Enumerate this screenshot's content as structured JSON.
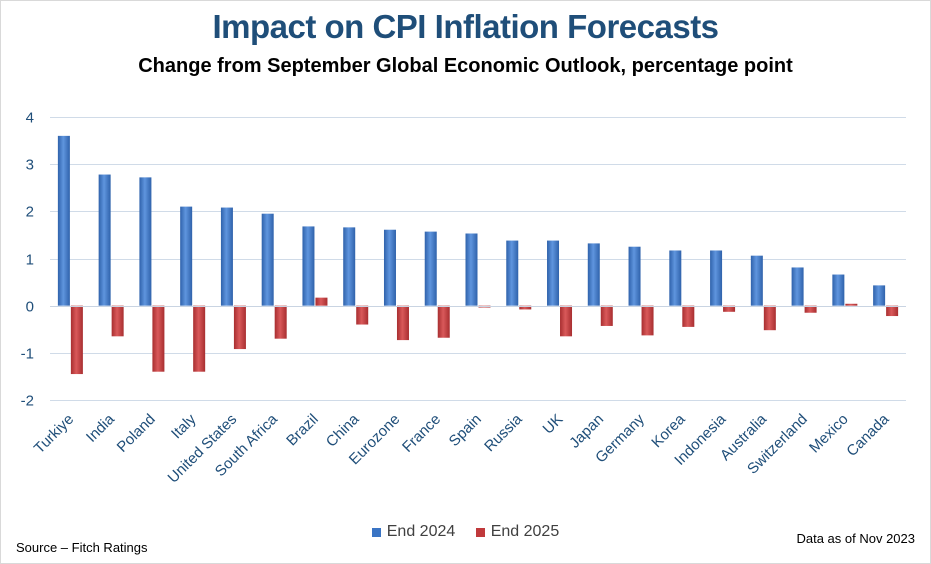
{
  "chart_data": {
    "type": "bar",
    "title": "Impact on CPI Inflation Forecasts",
    "subtitle": "Change from September Global Economic Outlook, percentage point",
    "categories": [
      "Turkiye",
      "India",
      "Poland",
      "Italy",
      "United States",
      "South Africa",
      "Brazil",
      "China",
      "Eurozone",
      "France",
      "Spain",
      "Russia",
      "UK",
      "Japan",
      "Germany",
      "Korea",
      "Indonesia",
      "Australia",
      "Switzerland",
      "Mexico",
      "Canada"
    ],
    "series": [
      {
        "name": "End 2024",
        "color": "#3a74c4",
        "values": [
          3.6,
          2.78,
          2.72,
          2.1,
          2.08,
          1.95,
          1.68,
          1.66,
          1.61,
          1.57,
          1.53,
          1.38,
          1.38,
          1.32,
          1.25,
          1.17,
          1.17,
          1.06,
          0.81,
          0.66,
          0.43
        ]
      },
      {
        "name": "End 2025",
        "color": "#c0393b",
        "values": [
          -1.45,
          -0.65,
          -1.4,
          -1.4,
          -0.92,
          -0.7,
          0.17,
          -0.4,
          -0.73,
          -0.68,
          -0.04,
          -0.08,
          -0.65,
          -0.43,
          -0.63,
          -0.45,
          -0.13,
          -0.52,
          -0.15,
          0.04,
          -0.22
        ]
      }
    ],
    "ylim": [
      -2,
      4
    ],
    "yticks": [
      -2,
      -1,
      0,
      1,
      2,
      3,
      4
    ],
    "xlabel": "",
    "ylabel": "",
    "grid": true,
    "legend_position": "bottom"
  },
  "footer": {
    "source": "Source – Fitch Ratings",
    "as_of": "Data as of Nov 2023"
  }
}
